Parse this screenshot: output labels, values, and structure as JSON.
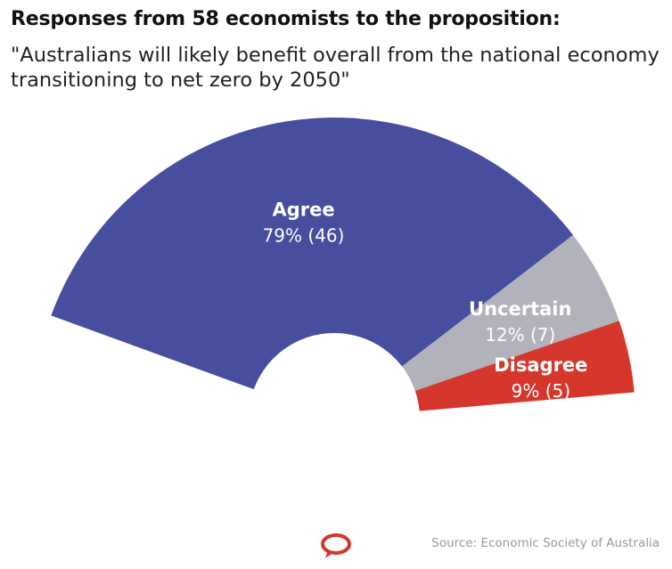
{
  "chart_data": {
    "type": "pie",
    "title": "Responses from 58 economists to the proposition:",
    "subtitle": "\"Australians will likely benefit overall from the national economy transitioning to net zero by 2050\"",
    "categories": [
      "Agree",
      "Uncertain",
      "Disagree"
    ],
    "values": [
      79,
      12,
      9
    ],
    "counts": [
      46,
      7,
      5
    ],
    "value_labels": [
      "79% (46)",
      "12% (7)",
      "9% (5)"
    ],
    "colors": [
      "#474e9e",
      "#b2b3ba",
      "#d5372d"
    ],
    "label_color": "#ffffff",
    "source": "Source: Economic Society of Australia"
  }
}
